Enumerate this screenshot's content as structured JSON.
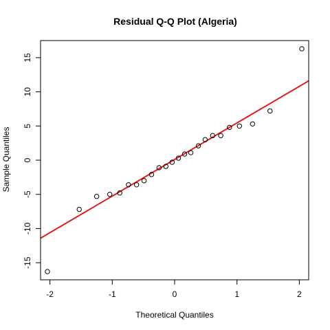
{
  "chart_data": {
    "type": "scatter",
    "title": "Residual Q-Q Plot (Algeria)",
    "xlabel": "Theoretical Quantiles",
    "ylabel": "Sample Quantiles",
    "xlim": [
      -2.15,
      2.15
    ],
    "ylim": [
      -17.5,
      17.5
    ],
    "x_ticks": [
      -2,
      -1,
      0,
      1,
      2
    ],
    "y_ticks": [
      -15,
      -10,
      -5,
      0,
      5,
      10,
      15
    ],
    "grid": false,
    "legend": "none",
    "point_color": "#000000",
    "points": [
      {
        "x": -2.04,
        "y": -16.3
      },
      {
        "x": -1.53,
        "y": -7.2
      },
      {
        "x": -1.25,
        "y": -5.3
      },
      {
        "x": -1.04,
        "y": -5.0
      },
      {
        "x": -0.88,
        "y": -4.8
      },
      {
        "x": -0.74,
        "y": -3.6
      },
      {
        "x": -0.61,
        "y": -3.6
      },
      {
        "x": -0.49,
        "y": -3.0
      },
      {
        "x": -0.37,
        "y": -2.1
      },
      {
        "x": -0.25,
        "y": -1.1
      },
      {
        "x": -0.14,
        "y": -0.9
      },
      {
        "x": -0.04,
        "y": -0.3
      },
      {
        "x": 0.06,
        "y": 0.3
      },
      {
        "x": 0.16,
        "y": 0.9
      },
      {
        "x": 0.26,
        "y": 1.1
      },
      {
        "x": 0.38,
        "y": 2.1
      },
      {
        "x": 0.49,
        "y": 3.0
      },
      {
        "x": 0.61,
        "y": 3.6
      },
      {
        "x": 0.74,
        "y": 3.6
      },
      {
        "x": 0.88,
        "y": 4.8
      },
      {
        "x": 1.04,
        "y": 5.0
      },
      {
        "x": 1.25,
        "y": 5.3
      },
      {
        "x": 1.53,
        "y": 7.2
      },
      {
        "x": 2.04,
        "y": 16.3
      }
    ],
    "reference_line": {
      "intercept": 0.1,
      "slope": 5.35,
      "color": "#e31a1c"
    }
  }
}
